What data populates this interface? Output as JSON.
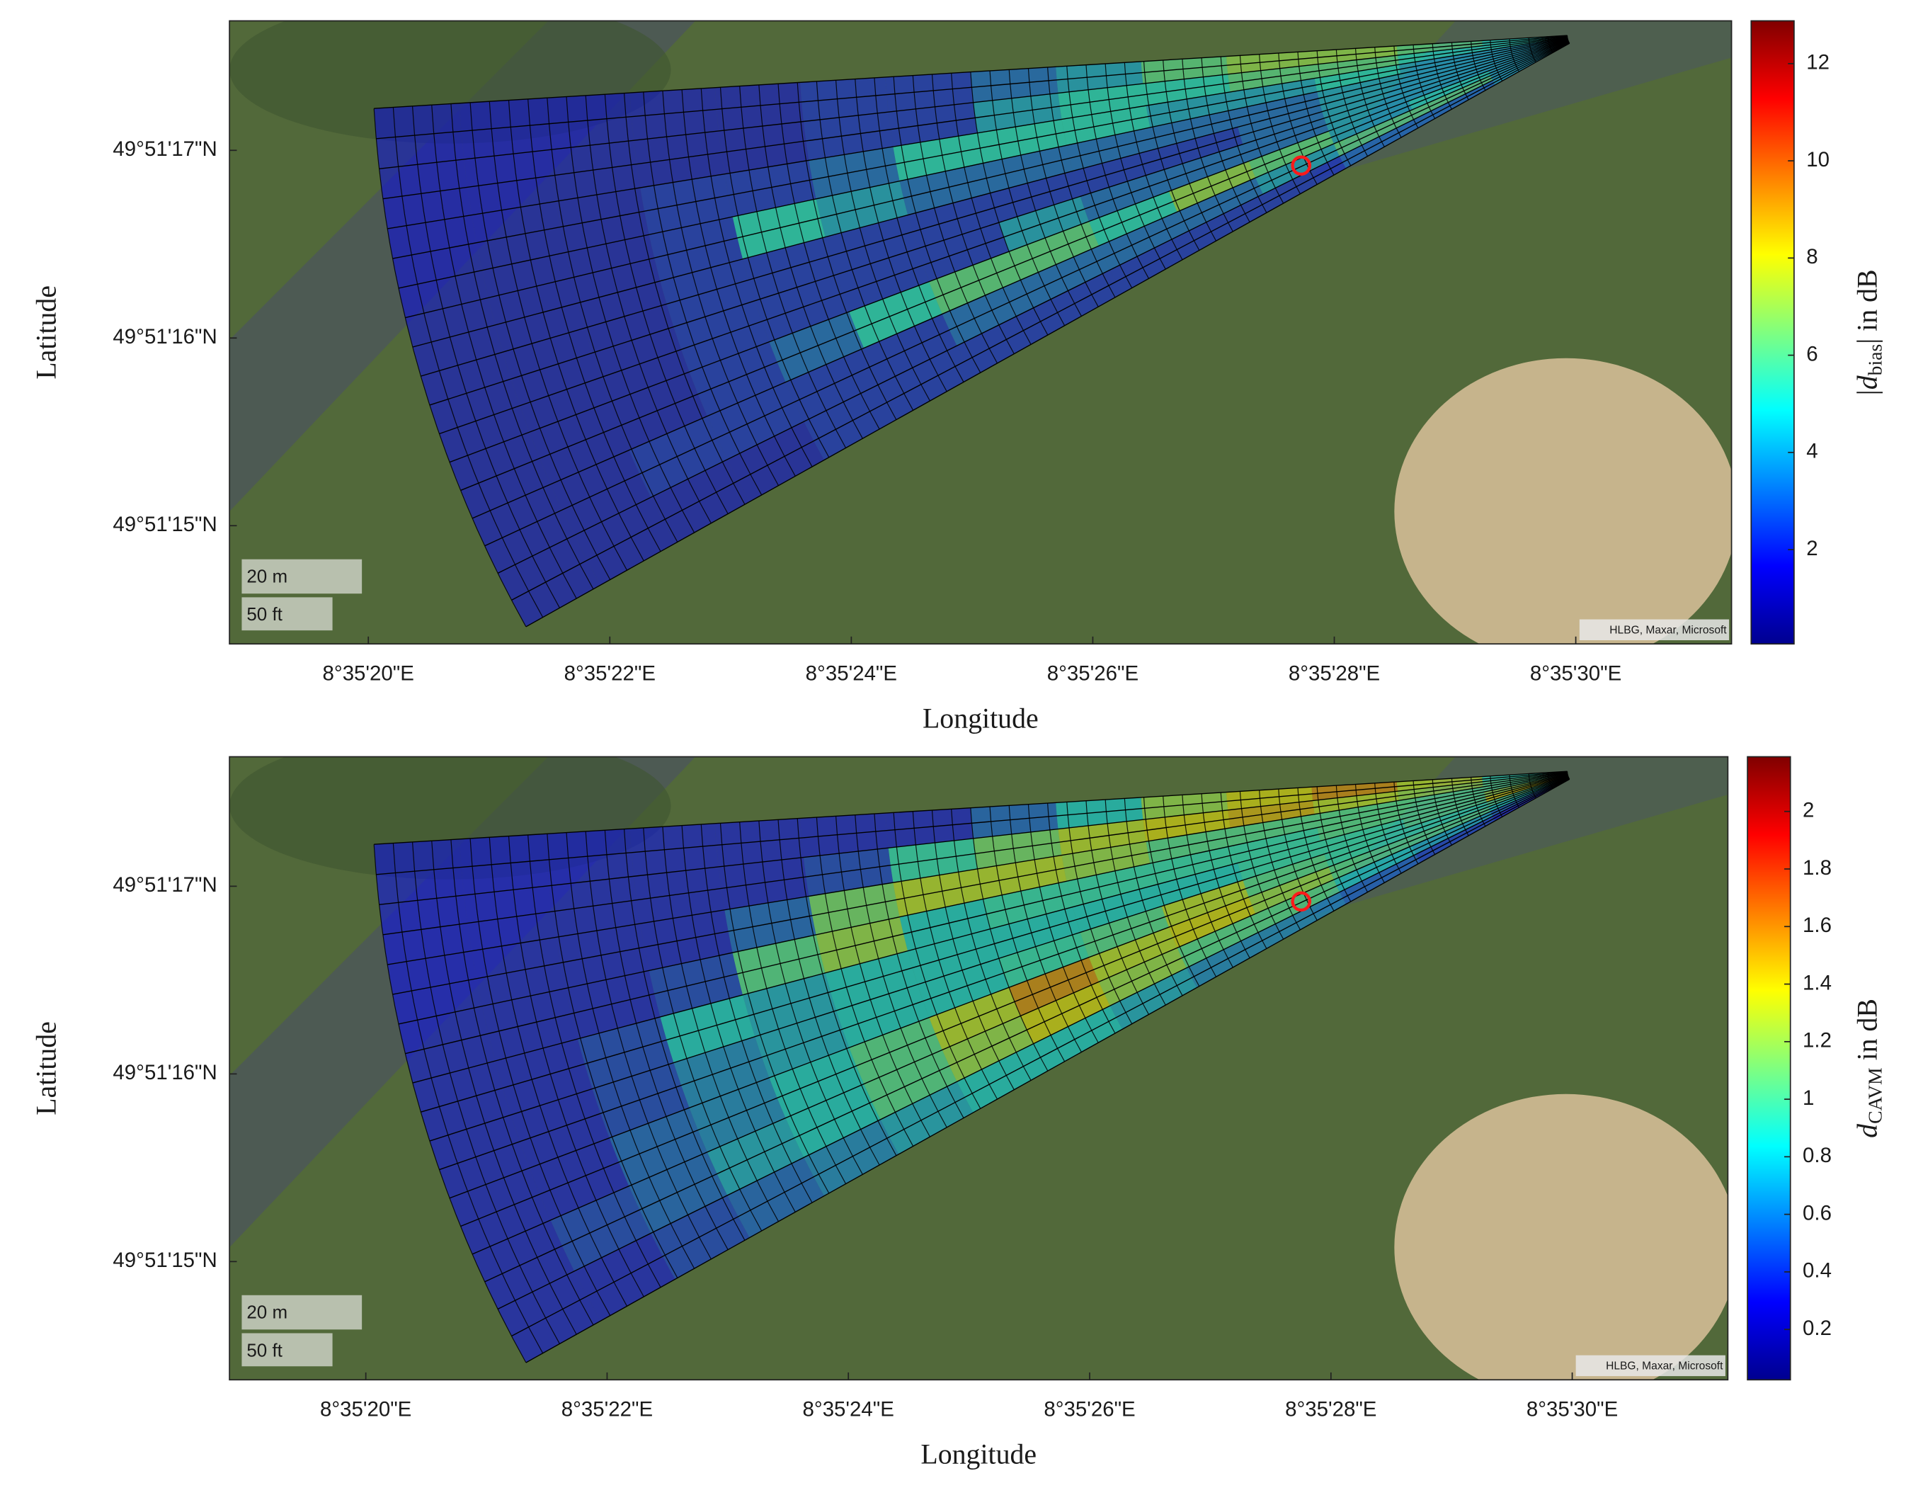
{
  "chart_data": [
    {
      "type": "heatmap",
      "xlabel": "Longitude",
      "ylabel": "Latitude",
      "colormap": "jet",
      "xlim": [
        18.85,
        31.29
      ],
      "ylim": [
        14.37,
        17.69
      ],
      "xticks": [
        {
          "value": 20,
          "label": "8°35'20\"E"
        },
        {
          "value": 22,
          "label": "8°35'22\"E"
        },
        {
          "value": 24,
          "label": "8°35'24\"E"
        },
        {
          "value": 26,
          "label": "8°35'26\"E"
        },
        {
          "value": 28,
          "label": "8°35'28\"E"
        },
        {
          "value": 30,
          "label": "8°35'30\"E"
        }
      ],
      "yticks": [
        {
          "value": 15,
          "label": "49°51'15\"N"
        },
        {
          "value": 16,
          "label": "49°51'16\"N"
        },
        {
          "value": 17,
          "label": "49°51'17\"N"
        }
      ],
      "clim": [
        0.06,
        12.88
      ],
      "cticks": [
        2,
        4,
        6,
        8,
        10,
        12
      ],
      "colorbar_label": {
        "prefix": "|",
        "symbol": "d",
        "subscript": "bias",
        "suffix": "| in dB"
      },
      "scale_bar": [
        "20 m",
        "50 ft"
      ],
      "attribution": "HLBG, Maxar, Microsoft",
      "cells": [
        [
          5,
          6,
          7,
          7,
          6,
          4,
          3,
          2,
          2,
          1.5,
          1.5,
          1.5,
          1.5,
          1.5
        ],
        [
          5,
          5,
          6,
          6,
          5,
          5,
          4,
          2,
          2,
          1.5,
          1.5,
          1.5,
          1.5,
          1.5
        ],
        [
          4,
          4,
          5,
          4,
          4,
          5,
          5,
          5,
          3,
          2,
          2,
          1.5,
          1.5,
          1.5
        ],
        [
          4,
          4,
          4,
          3,
          3,
          3,
          3,
          3,
          4,
          5,
          2,
          1.5,
          1.5,
          1.5
        ],
        [
          4,
          4,
          4,
          3,
          2,
          2,
          2,
          2,
          2,
          2,
          2,
          1.5,
          1.5,
          1.5
        ],
        [
          4,
          4,
          4,
          3,
          3,
          3,
          4,
          2,
          2,
          2,
          2,
          1.5,
          1.5,
          1.5
        ],
        [
          4,
          5,
          4,
          6,
          7,
          5,
          6,
          6,
          5,
          3,
          2,
          1.5,
          1.5,
          1.5
        ],
        [
          4,
          6,
          6,
          4,
          3,
          3,
          3,
          3,
          2,
          2,
          2,
          2,
          1.5,
          1.5
        ],
        [
          4,
          3,
          3,
          2,
          2,
          2,
          2,
          2,
          2,
          2,
          1.5,
          1.5,
          1.5,
          1.5
        ]
      ]
    },
    {
      "type": "heatmap",
      "xlabel": "Longitude",
      "ylabel": "Latitude",
      "colormap": "jet",
      "xlim": [
        18.87,
        31.29
      ],
      "ylim": [
        14.37,
        17.69
      ],
      "xticks": [
        {
          "value": 20,
          "label": "8°35'20\"E"
        },
        {
          "value": 22,
          "label": "8°35'22\"E"
        },
        {
          "value": 24,
          "label": "8°35'24\"E"
        },
        {
          "value": 26,
          "label": "8°35'26\"E"
        },
        {
          "value": 28,
          "label": "8°35'28\"E"
        },
        {
          "value": 30,
          "label": "8°35'30\"E"
        }
      ],
      "yticks": [
        {
          "value": 15,
          "label": "49°51'15\"N"
        },
        {
          "value": 16,
          "label": "49°51'16\"N"
        },
        {
          "value": 17,
          "label": "49°51'17\"N"
        }
      ],
      "clim": [
        0.025,
        2.19
      ],
      "cticks": [
        0.2,
        0.4,
        0.6,
        0.8,
        1,
        1.2,
        1.4,
        1.6,
        1.8,
        2
      ],
      "colorbar_label": {
        "symbol": "d",
        "subscript": "CAVM",
        "suffix": " in dB"
      },
      "scale_bar": [
        "20 m",
        "50 ft"
      ],
      "attribution": "HLBG, Maxar, Microsoft",
      "cells": [
        [
          0.9,
          1.3,
          1.6,
          1.4,
          1.2,
          0.8,
          0.5,
          0.3,
          0.3,
          0.3,
          0.3,
          0.3,
          0.3,
          0.3
        ],
        [
          1.0,
          1.2,
          1.3,
          1.5,
          1.4,
          1.3,
          1.1,
          0.9,
          0.4,
          0.3,
          0.3,
          0.3,
          0.3,
          0.3
        ],
        [
          1.0,
          1.0,
          1.0,
          1.0,
          1.0,
          1.2,
          1.3,
          1.3,
          1.1,
          0.5,
          0.3,
          0.3,
          0.3,
          0.3
        ],
        [
          1.2,
          1.0,
          1.0,
          0.9,
          0.9,
          0.9,
          0.9,
          0.8,
          1.2,
          1.0,
          0.4,
          0.3,
          0.3,
          0.3
        ],
        [
          1.4,
          1.0,
          0.9,
          0.9,
          0.8,
          0.8,
          0.8,
          0.8,
          0.8,
          0.7,
          0.8,
          0.4,
          0.3,
          0.3
        ],
        [
          1.0,
          0.9,
          0.9,
          1.0,
          1.3,
          1.0,
          0.9,
          0.8,
          0.8,
          0.7,
          0.6,
          0.4,
          0.3,
          0.3
        ],
        [
          0.8,
          1.0,
          1.0,
          1.2,
          1.4,
          1.3,
          1.6,
          1.3,
          1.0,
          0.8,
          0.6,
          0.5,
          0.3,
          0.3
        ],
        [
          0.5,
          0.7,
          0.8,
          1.0,
          1.0,
          1.2,
          1.4,
          1.2,
          1.0,
          0.8,
          0.7,
          0.5,
          0.4,
          0.3
        ],
        [
          0.3,
          0.4,
          0.5,
          0.6,
          0.6,
          0.7,
          0.8,
          0.8,
          0.7,
          0.6,
          0.5,
          0.4,
          0.3,
          0.3
        ]
      ]
    }
  ]
}
